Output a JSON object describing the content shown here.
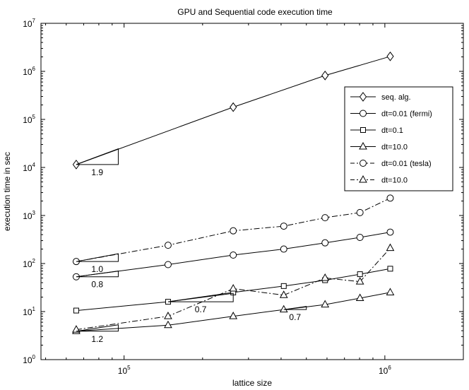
{
  "chart_data": {
    "type": "line",
    "title": "GPU and Sequential code execution time",
    "xlabel": "lattice size",
    "ylabel": "execution time in sec",
    "xscale": "log",
    "yscale": "log",
    "xlim": [
      48000,
      2000000
    ],
    "ylim": [
      1,
      10000000
    ],
    "x": [
      65536,
      147456,
      262144,
      409600,
      589824,
      802816,
      1048576
    ],
    "xticks": [
      {
        "value": 100000,
        "base": "10",
        "exp": "5"
      },
      {
        "value": 1000000,
        "base": "10",
        "exp": "6"
      }
    ],
    "yticks": [
      {
        "value": 1,
        "base": "10",
        "exp": "0"
      },
      {
        "value": 10,
        "base": "10",
        "exp": "1"
      },
      {
        "value": 100,
        "base": "10",
        "exp": "2"
      },
      {
        "value": 1000,
        "base": "10",
        "exp": "3"
      },
      {
        "value": 10000,
        "base": "10",
        "exp": "4"
      },
      {
        "value": 100000,
        "base": "10",
        "exp": "5"
      },
      {
        "value": 1000000,
        "base": "10",
        "exp": "6"
      },
      {
        "value": 10000000,
        "base": "10",
        "exp": "7"
      }
    ],
    "grid": false,
    "legend_position": "right",
    "series": [
      {
        "name": "seq. alg.",
        "marker": "diamond",
        "dash": "solid",
        "points": [
          [
            65536,
            11500
          ],
          [
            262144,
            180000
          ],
          [
            589824,
            820000
          ],
          [
            1048576,
            2050000
          ]
        ]
      },
      {
        "name": "dt=0.01 (fermi)",
        "marker": "circle",
        "dash": "solid",
        "points": [
          [
            65536,
            53
          ],
          [
            147456,
            95
          ],
          [
            262144,
            150
          ],
          [
            409600,
            200
          ],
          [
            589824,
            270
          ],
          [
            802816,
            350
          ],
          [
            1048576,
            450
          ]
        ]
      },
      {
        "name": "dt=0.1",
        "marker": "square",
        "dash": "solid",
        "points": [
          [
            65536,
            10.5
          ],
          [
            147456,
            16
          ],
          [
            262144,
            25
          ],
          [
            409600,
            34
          ],
          [
            589824,
            45
          ],
          [
            802816,
            60
          ],
          [
            1048576,
            78
          ]
        ]
      },
      {
        "name": "dt=10.0",
        "marker": "triangle",
        "dash": "solid",
        "points": [
          [
            65536,
            3.9
          ],
          [
            147456,
            5.2
          ],
          [
            262144,
            8
          ],
          [
            409600,
            11
          ],
          [
            589824,
            14
          ],
          [
            802816,
            19
          ],
          [
            1048576,
            25
          ]
        ]
      },
      {
        "name": "dt=0.01 (tesla)",
        "marker": "circle",
        "dash": "dashdot",
        "points": [
          [
            65536,
            110
          ],
          [
            147456,
            240
          ],
          [
            262144,
            480
          ],
          [
            409600,
            600
          ],
          [
            589824,
            900
          ],
          [
            802816,
            1150
          ],
          [
            1048576,
            2300
          ]
        ]
      },
      {
        "name": "dt=10.0",
        "marker": "triangle",
        "dash": "dashdot",
        "points": [
          [
            65536,
            4.2
          ],
          [
            147456,
            8
          ],
          [
            262144,
            30
          ],
          [
            409600,
            22
          ],
          [
            589824,
            50
          ],
          [
            802816,
            42
          ],
          [
            1048576,
            210
          ]
        ]
      }
    ],
    "slope_annotations": [
      {
        "label": "1.9",
        "x0": 65536,
        "x1": 95000,
        "y0": 11500,
        "y1": 24500
      },
      {
        "label": "1.0",
        "x0": 65536,
        "x1": 95000,
        "y0": 110,
        "y1": 160
      },
      {
        "label": "0.8",
        "x0": 65536,
        "x1": 95000,
        "y0": 53,
        "y1": 70
      },
      {
        "label": "0.7",
        "x0": 147456,
        "x1": 262144,
        "y0": 16,
        "y1": 24
      },
      {
        "label": "0.7",
        "x0": 409600,
        "x1": 500000,
        "y0": 11,
        "y1": 12.8
      },
      {
        "label": "1.2",
        "x0": 65536,
        "x1": 95000,
        "y0": 3.9,
        "y1": 5.3
      }
    ]
  }
}
